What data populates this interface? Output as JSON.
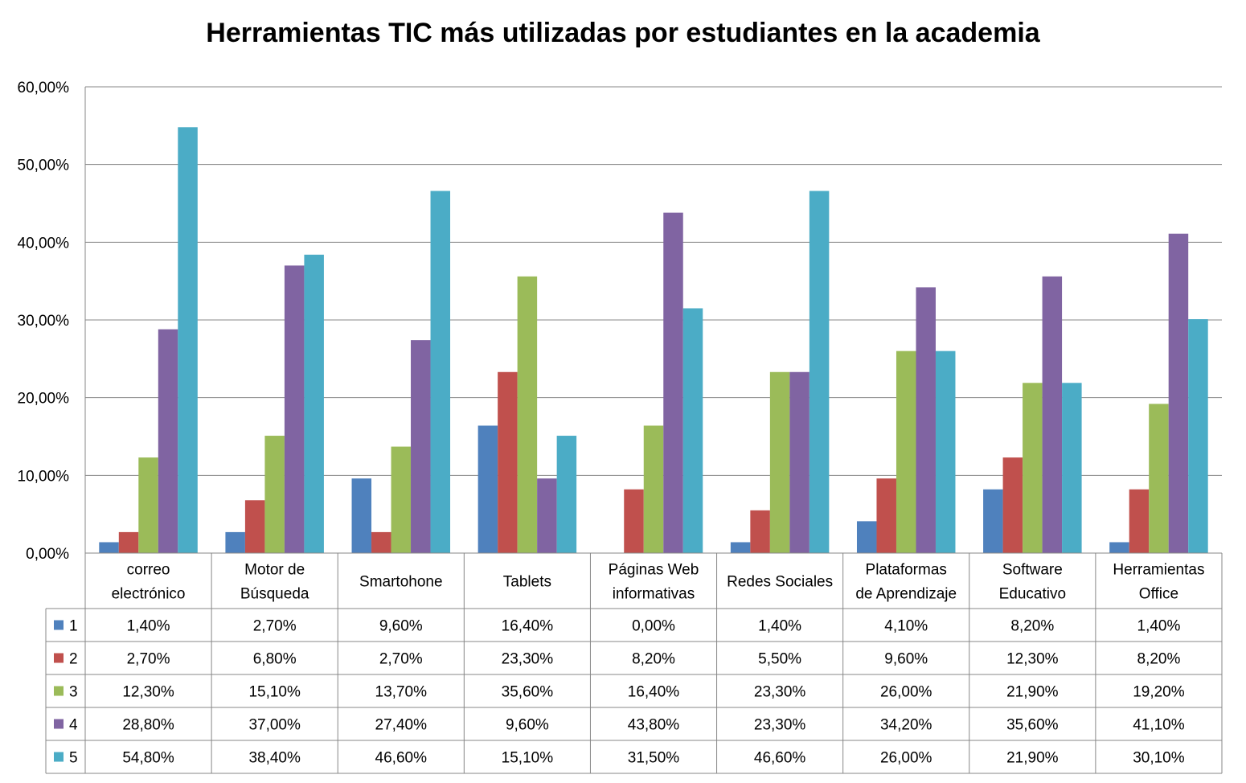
{
  "chart_data": {
    "type": "bar",
    "title": "Herramientas TIC más utilizadas por estudiantes en la academia",
    "categories": [
      [
        "correo",
        "electrónico"
      ],
      [
        "Motor de",
        "Búsqueda"
      ],
      [
        "Smartohone"
      ],
      [
        "Tablets"
      ],
      [
        "Páginas Web",
        "informativas"
      ],
      [
        "Redes Sociales"
      ],
      [
        "Plataformas",
        "de Aprendizaje"
      ],
      [
        "Software",
        "Educativo"
      ],
      [
        "Herramientas",
        "Office"
      ]
    ],
    "series": [
      {
        "name": "1",
        "color": "#4F81BD",
        "values": [
          1.4,
          2.7,
          9.6,
          16.4,
          0.0,
          1.4,
          4.1,
          8.2,
          1.4
        ],
        "labels": [
          "1,40%",
          "2,70%",
          "9,60%",
          "16,40%",
          "0,00%",
          "1,40%",
          "4,10%",
          "8,20%",
          "1,40%"
        ]
      },
      {
        "name": "2",
        "color": "#C0504D",
        "values": [
          2.7,
          6.8,
          2.7,
          23.3,
          8.2,
          5.5,
          9.6,
          12.3,
          8.2
        ],
        "labels": [
          "2,70%",
          "6,80%",
          "2,70%",
          "23,30%",
          "8,20%",
          "5,50%",
          "9,60%",
          "12,30%",
          "8,20%"
        ]
      },
      {
        "name": "3",
        "color": "#9BBB59",
        "values": [
          12.3,
          15.1,
          13.7,
          35.6,
          16.4,
          23.3,
          26.0,
          21.9,
          19.2
        ],
        "labels": [
          "12,30%",
          "15,10%",
          "13,70%",
          "35,60%",
          "16,40%",
          "23,30%",
          "26,00%",
          "21,90%",
          "19,20%"
        ]
      },
      {
        "name": "4",
        "color": "#8064A2",
        "values": [
          28.8,
          37.0,
          27.4,
          9.6,
          43.8,
          23.3,
          34.2,
          35.6,
          41.1
        ],
        "labels": [
          "28,80%",
          "37,00%",
          "27,40%",
          "9,60%",
          "43,80%",
          "23,30%",
          "34,20%",
          "35,60%",
          "41,10%"
        ]
      },
      {
        "name": "5",
        "color": "#4BACC6",
        "values": [
          54.8,
          38.4,
          46.6,
          15.1,
          31.5,
          46.6,
          26.0,
          21.9,
          30.1
        ],
        "labels": [
          "54,80%",
          "38,40%",
          "46,60%",
          "15,10%",
          "31,50%",
          "46,60%",
          "26,00%",
          "21,90%",
          "30,10%"
        ]
      }
    ],
    "ylim": [
      0,
      60
    ],
    "yticks": [
      0,
      10,
      20,
      30,
      40,
      50,
      60
    ],
    "ytick_labels": [
      "0,00%",
      "10,00%",
      "20,00%",
      "30,00%",
      "40,00%",
      "50,00%",
      "60,00%"
    ],
    "grid": true,
    "legend": "data-table"
  }
}
